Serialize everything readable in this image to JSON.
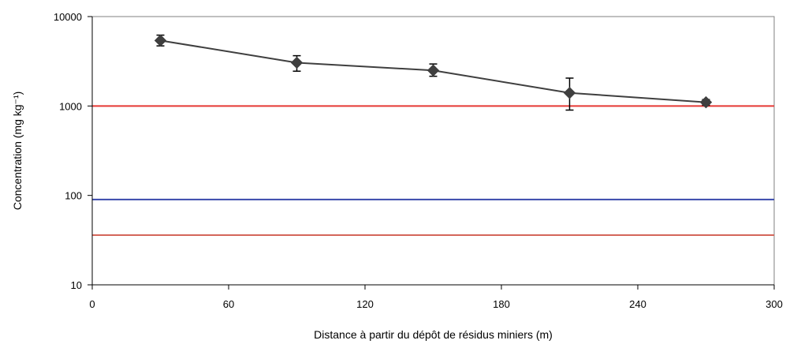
{
  "chart_data": {
    "type": "scatter",
    "title": "",
    "xlabel": "Distance à partir du dépôt de résidus miniers (m)",
    "ylabel": "Concentration (mg kg⁻¹)",
    "xlim": [
      0,
      300
    ],
    "ylim": [
      10,
      10000
    ],
    "yscale": "log",
    "x_ticks": [
      0,
      60,
      120,
      180,
      240,
      300
    ],
    "y_ticks": [
      10,
      100,
      1000,
      10000
    ],
    "x_tick_labels": [
      "0",
      "60",
      "120",
      "180",
      "240",
      "300"
    ],
    "y_tick_labels": [
      "10",
      "100",
      "1000",
      "10000"
    ],
    "grid": false,
    "legend": "none",
    "series": [
      {
        "color": "#3f3f3f",
        "marker": "diamond",
        "line": true,
        "x": [
          30,
          90,
          150,
          210,
          270
        ],
        "y": [
          5400,
          3050,
          2500,
          1400,
          1100
        ],
        "error_low": [
          4700,
          2450,
          2150,
          900,
          1020
        ],
        "error_high": [
          6200,
          3650,
          2950,
          2050,
          1180
        ]
      }
    ],
    "reference_lines": [
      {
        "y": 1000,
        "color": "#e53935"
      },
      {
        "y": 90,
        "color": "#3949ab"
      },
      {
        "y": 36,
        "color": "#d4665a"
      }
    ]
  }
}
